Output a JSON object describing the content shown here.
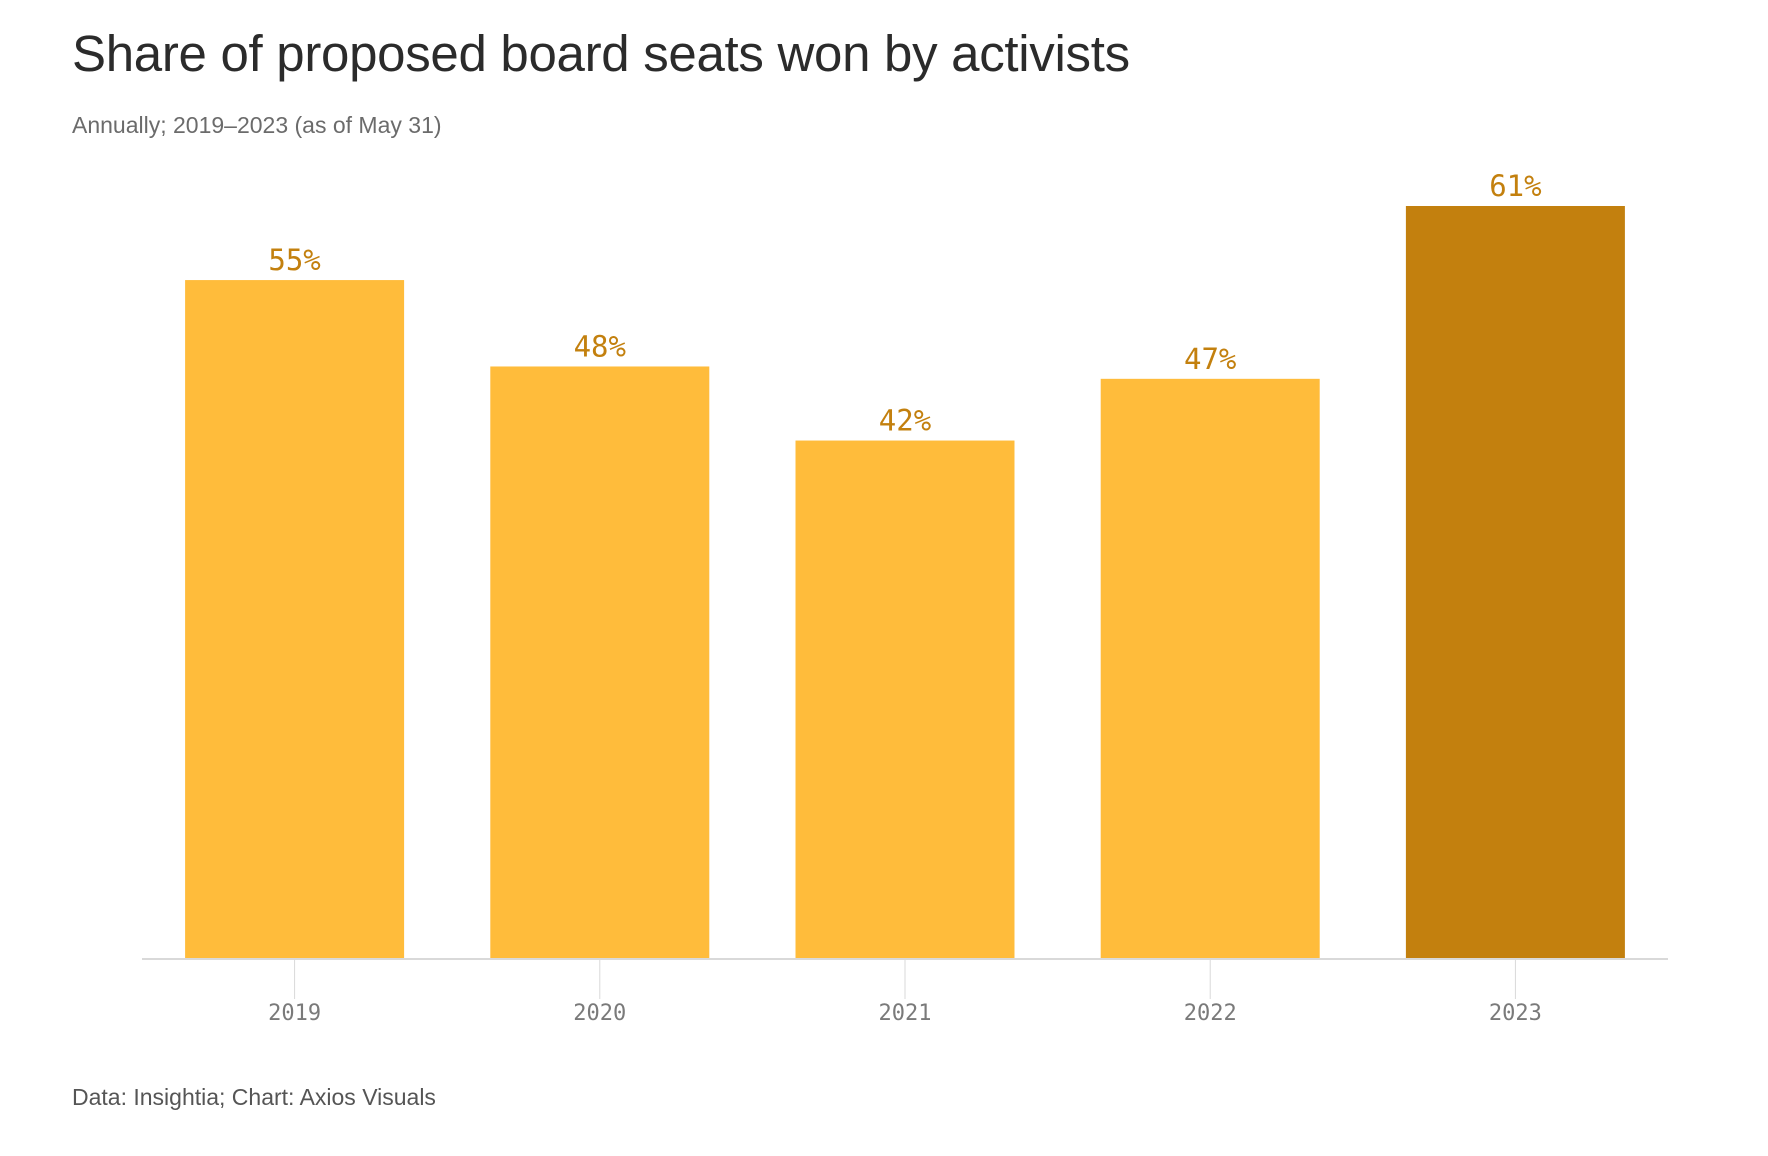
{
  "title": "Share of proposed board seats won by activists",
  "subtitle": "Annually; 2019–2023 (as of May 31)",
  "footer": "Data: Insightia; Chart: Axios Visuals",
  "colors": {
    "bar": "#FFBC3B",
    "highlight": "#C3800E",
    "label": "#C3800E",
    "axis": "#d9d9d9",
    "tick_text": "#7a7a7a"
  },
  "chart_data": {
    "type": "bar",
    "categories": [
      "2019",
      "2020",
      "2021",
      "2022",
      "2023"
    ],
    "values": [
      55,
      48,
      42,
      47,
      61
    ],
    "value_labels": [
      "55%",
      "48%",
      "42%",
      "47%",
      "61%"
    ],
    "highlight_index": 4,
    "title": "Share of proposed board seats won by activists",
    "subtitle": "Annually; 2019–2023 (as of May 31)",
    "xlabel": "",
    "ylabel": "",
    "ylim": [
      0,
      61
    ],
    "grid": false,
    "legend": "none"
  }
}
